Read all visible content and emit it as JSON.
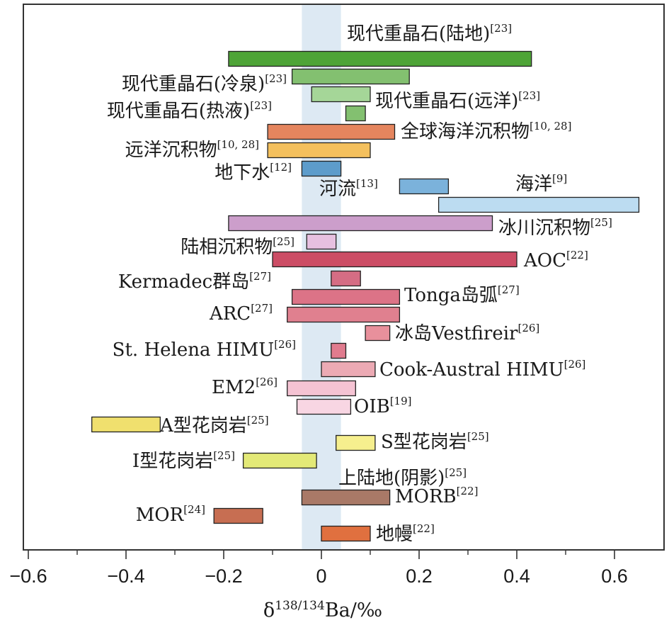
{
  "chart_data": {
    "type": "range-bar",
    "xlim": [
      -0.6,
      0.7
    ],
    "x_ticks": [
      -0.6,
      -0.4,
      -0.2,
      0,
      0.2,
      0.4,
      0.6
    ],
    "x_tick_labels": [
      "−0.6",
      "−0.4",
      "−0.2",
      "0",
      "0.2",
      "0.4",
      "0.6"
    ],
    "xlabel": {
      "base": "δ",
      "sup": "138/134",
      "rest": "Ba/‰"
    },
    "band": {
      "range": [
        -0.04,
        0.04
      ],
      "color": "#dde9f3",
      "label": "上陆地(阴影)[25]"
    },
    "bars": [
      {
        "name": "现代重晶石(陆地)",
        "ref": "[23]",
        "min": -0.19,
        "max": 0.43,
        "color": "#4ea437"
      },
      {
        "name": "现代重晶石(冷泉)",
        "ref": "[23]",
        "min": -0.06,
        "max": 0.18,
        "color": "#83c070"
      },
      {
        "name": "现代重晶石(远洋)",
        "ref": "[23]",
        "min": -0.02,
        "max": 0.1,
        "color": "#a5d698"
      },
      {
        "name": "现代重晶石(热液)",
        "ref": "[23]",
        "min": 0.05,
        "max": 0.09,
        "color": "#83c070"
      },
      {
        "name": "全球海洋沉积物",
        "ref": "[10, 28]",
        "min": -0.11,
        "max": 0.15,
        "color": "#e5855e"
      },
      {
        "name": "远洋沉积物",
        "ref": "[10, 28]",
        "min": -0.11,
        "max": 0.1,
        "color": "#f4c05d"
      },
      {
        "name": "地下水",
        "ref": "[12]",
        "min": -0.04,
        "max": 0.04,
        "color": "#5d9ccb"
      },
      {
        "name": "河流",
        "ref": "[13]",
        "min": 0.16,
        "max": 0.26,
        "color": "#7bb2db"
      },
      {
        "name": "海洋",
        "ref": "[9]",
        "min": 0.24,
        "max": 0.65,
        "color": "#bcdcf1"
      },
      {
        "name": "冰川沉积物",
        "ref": "[25]",
        "min": -0.19,
        "max": 0.35,
        "color": "#cc9ecb"
      },
      {
        "name": "陆相沉积物",
        "ref": "[25]",
        "min": -0.03,
        "max": 0.03,
        "color": "#e6c0e0"
      },
      {
        "name": "AOC",
        "ref": "[22]",
        "min": -0.1,
        "max": 0.4,
        "color": "#cc4d65"
      },
      {
        "name": "Kermadec群岛",
        "ref": "[27]",
        "min": 0.02,
        "max": 0.08,
        "color": "#d56d84"
      },
      {
        "name": "Tonga岛弧",
        "ref": "[27]",
        "min": -0.06,
        "max": 0.16,
        "color": "#dc7387"
      },
      {
        "name": "ARC",
        "ref": "[27]",
        "min": -0.07,
        "max": 0.16,
        "color": "#e0808f"
      },
      {
        "name": "冰岛Vestfireir",
        "ref": "[26]",
        "min": 0.09,
        "max": 0.14,
        "color": "#e8909c"
      },
      {
        "name": "St. Helena HIMU",
        "ref": "[26]",
        "min": 0.02,
        "max": 0.05,
        "color": "#e07b8e"
      },
      {
        "name": "Cook-Austral HIMU",
        "ref": "[26]",
        "min": 0.0,
        "max": 0.11,
        "color": "#ecaab4"
      },
      {
        "name": "EM2",
        "ref": "[26]",
        "min": -0.07,
        "max": 0.07,
        "color": "#f5c3d3"
      },
      {
        "name": "OIB",
        "ref": "[19]",
        "min": -0.05,
        "max": 0.06,
        "color": "#f8d6e3"
      },
      {
        "name": "A型花岗岩",
        "ref": "[25]",
        "min": -0.47,
        "max": -0.33,
        "color": "#f0e06e"
      },
      {
        "name": "S型花岗岩",
        "ref": "[25]",
        "min": 0.03,
        "max": 0.11,
        "color": "#f6ef8e"
      },
      {
        "name": "I型花岗岩",
        "ref": "[25]",
        "min": -0.16,
        "max": -0.01,
        "color": "#e3e977"
      },
      {
        "name": "MORB",
        "ref": "[22]",
        "min": -0.04,
        "max": 0.14,
        "color": "#a97967"
      },
      {
        "name": "MOR",
        "ref": "[24]",
        "min": -0.22,
        "max": -0.12,
        "color": "#c76e52"
      },
      {
        "name": "地幔",
        "ref": "[22]",
        "min": 0.0,
        "max": 0.1,
        "color": "#e0703f"
      }
    ]
  }
}
